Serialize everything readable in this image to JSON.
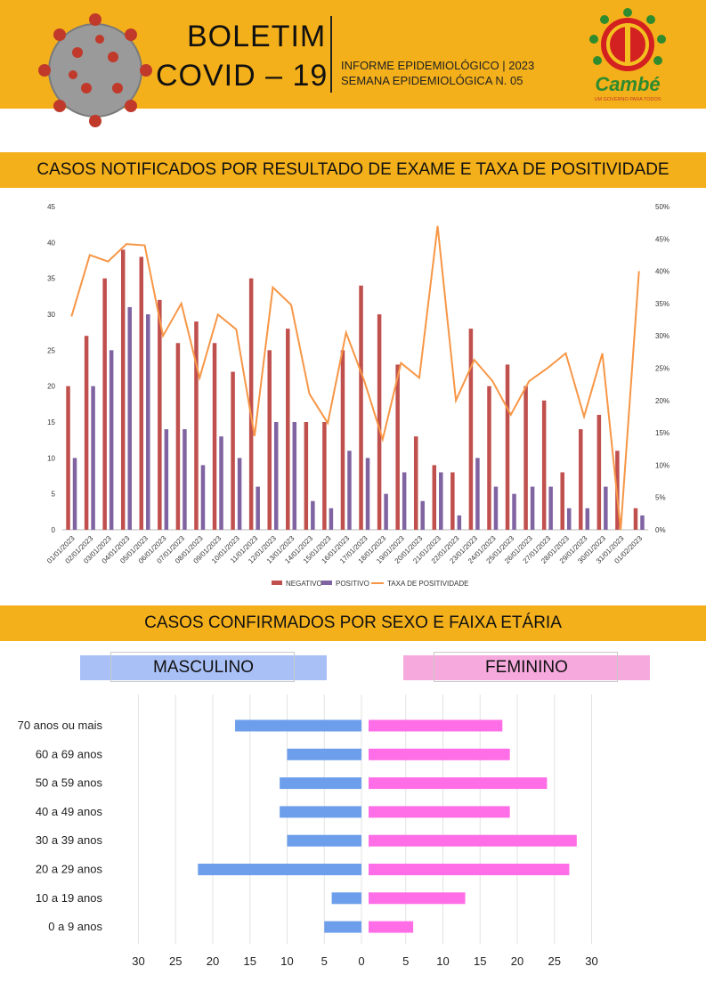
{
  "header": {
    "title_line1": "BOLETIM",
    "title_line2": "COVID – 19",
    "info_line1": "INFORME EPIDEMIOLÓGICO | 2023",
    "info_line2": "SEMANA EPIDEMIOLÓGICA  N. 05",
    "logo_text": "Cambé",
    "logo_tagline": "UM GOVERNO PARA TODOS",
    "bg_color": "#f4b01a"
  },
  "section1": {
    "title": "CASOS NOTIFICADOS POR RESULTADO DE EXAME E TAXA DE POSITIVIDADE"
  },
  "section2": {
    "title": "CASOS CONFIRMADOS POR SEXO E FAIXA ETÁRIA",
    "male_label": "MASCULINO",
    "female_label": "FEMININO"
  },
  "chart_data": [
    {
      "type": "bar",
      "categories": [
        "01/01/2023",
        "02/01/2023",
        "03/01/2023",
        "04/01/2023",
        "05/01/2023",
        "06/01/2023",
        "07/01/2023",
        "08/01/2023",
        "09/01/2023",
        "10/01/2023",
        "11/01/2023",
        "12/01/2023",
        "13/01/2023",
        "14/01/2023",
        "15/01/2023",
        "16/01/2023",
        "17/01/2023",
        "18/01/2023",
        "19/01/2023",
        "20/01/2023",
        "21/01/2023",
        "22/01/2023",
        "23/01/2023",
        "24/01/2023",
        "25/01/2023",
        "26/01/2023",
        "27/01/2023",
        "28/01/2023",
        "29/01/2023",
        "30/01/2023",
        "31/01/2023",
        "01/02/2023"
      ],
      "series": [
        {
          "name": "NEGATIVO",
          "color": "#c0504d",
          "axis": "left",
          "values": [
            20,
            27,
            35,
            39,
            38,
            32,
            26,
            29,
            26,
            22,
            35,
            25,
            28,
            15,
            15,
            25,
            34,
            30,
            23,
            13,
            9,
            8,
            28,
            20,
            23,
            20,
            18,
            8,
            14,
            16,
            11,
            3
          ]
        },
        {
          "name": "POSITIVO",
          "color": "#8064a2",
          "axis": "left",
          "values": [
            10,
            20,
            25,
            31,
            30,
            14,
            14,
            9,
            13,
            10,
            6,
            15,
            15,
            4,
            3,
            11,
            10,
            5,
            8,
            4,
            8,
            2,
            10,
            6,
            5,
            6,
            6,
            3,
            3,
            6,
            0,
            2
          ]
        },
        {
          "name": "TAXA DE POSITIVIDADE",
          "color": "#f79646",
          "axis": "right",
          "kind": "line",
          "values": [
            33,
            42.5,
            41.5,
            44.2,
            44,
            30,
            35,
            23.5,
            33.3,
            31,
            14.5,
            37.5,
            34.8,
            21,
            16.5,
            30.5,
            23,
            14,
            25.8,
            23.5,
            47,
            20,
            26.3,
            23,
            17.8,
            23,
            25,
            27.3,
            17.5,
            27.3,
            0,
            40
          ]
        }
      ],
      "ylim": [
        0,
        45
      ],
      "yticks": [
        "0",
        "5",
        "10",
        "15",
        "20",
        "25",
        "30",
        "35",
        "40",
        "45"
      ],
      "y2lim": [
        0,
        50
      ],
      "y2ticks": [
        "0%",
        "5%",
        "10%",
        "15%",
        "20%",
        "25%",
        "30%",
        "35%",
        "40%",
        "45%",
        "50%"
      ],
      "legend_position": "bottom"
    },
    {
      "type": "bar",
      "orientation": "horizontal",
      "categories": [
        "70 anos ou mais",
        "60 a 69 anos",
        "50 a 59 anos",
        "40 a 49 anos",
        "30 a 39 anos",
        "20 a 29 anos",
        "10 a 19 anos",
        "0 a 9 anos"
      ],
      "series": [
        {
          "name": "MASCULINO",
          "color": "#6d9eeb",
          "values": [
            17,
            10,
            11,
            11,
            10,
            22,
            4,
            5
          ]
        },
        {
          "name": "FEMININO",
          "color": "#ff6ee6",
          "values": [
            18,
            19,
            24,
            19,
            28,
            27,
            13,
            6
          ]
        }
      ],
      "xticks_male": [
        "30",
        "25",
        "20",
        "15",
        "10",
        "5",
        "0"
      ],
      "xticks_female": [
        "5",
        "10",
        "15",
        "20",
        "25",
        "30"
      ],
      "xlim": [
        0,
        30
      ]
    }
  ]
}
